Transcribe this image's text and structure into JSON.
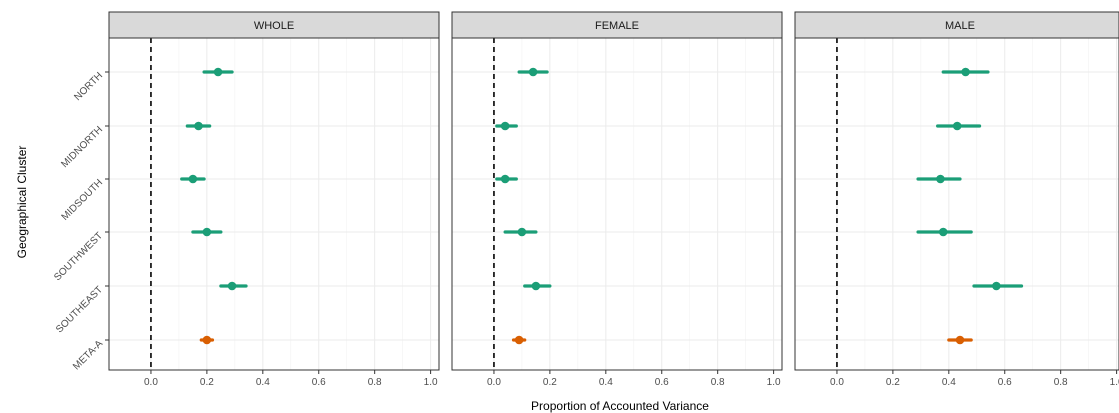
{
  "chart_data": {
    "type": "forest",
    "ylabel": "Geographical Cluster",
    "xlabel": "Proportion of Accounted Variance",
    "xlim": [
      -0.15,
      1.03
    ],
    "x_ticks": [
      "0.0",
      "0.2",
      "0.4",
      "0.6",
      "0.8",
      "1.0"
    ],
    "x_tick_values": [
      0,
      0.2,
      0.4,
      0.6,
      0.8,
      1.0
    ],
    "reference_line": 0,
    "grid": true,
    "categories": [
      "NORTH",
      "MIDNORTH",
      "MIDSOUTH",
      "SOUTHWEST",
      "SOUTHEAST",
      "META-A"
    ],
    "colors": {
      "cluster": "#1b9e77",
      "meta": "#d95f02"
    },
    "panels": [
      {
        "title": "WHOLE",
        "estimates": [
          0.24,
          0.17,
          0.15,
          0.2,
          0.29,
          0.2
        ],
        "lower": [
          0.19,
          0.13,
          0.11,
          0.15,
          0.25,
          0.18
        ],
        "upper": [
          0.29,
          0.21,
          0.19,
          0.25,
          0.34,
          0.22
        ]
      },
      {
        "title": "FEMALE",
        "estimates": [
          0.14,
          0.04,
          0.04,
          0.1,
          0.15,
          0.09
        ],
        "lower": [
          0.09,
          0.01,
          0.01,
          0.04,
          0.11,
          0.07
        ],
        "upper": [
          0.19,
          0.08,
          0.08,
          0.15,
          0.2,
          0.11
        ]
      },
      {
        "title": "MALE",
        "estimates": [
          0.46,
          0.43,
          0.37,
          0.38,
          0.57,
          0.44
        ],
        "lower": [
          0.38,
          0.36,
          0.29,
          0.29,
          0.49,
          0.4
        ],
        "upper": [
          0.54,
          0.51,
          0.44,
          0.48,
          0.66,
          0.48
        ]
      }
    ]
  }
}
